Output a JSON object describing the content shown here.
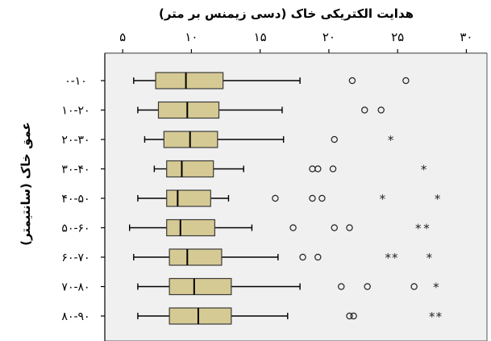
{
  "chart_data": {
    "type": "boxplot",
    "orientation": "horizontal",
    "title": "هدایت الکتریکی خاک (دسی زیمنس بر متر)",
    "xlabel": "هدایت الکتریکی خاک (دسی زیمنس بر متر)",
    "ylabel": "عمق خاک (سانتیمتر)",
    "x_axis_position": "top",
    "xlim": [
      3.7,
      31.5
    ],
    "xticks": [
      5,
      10,
      15,
      20,
      25,
      30
    ],
    "xtick_labels": [
      "۵",
      "۱۰",
      "۱۵",
      "۲۰",
      "۲۵",
      "۳۰"
    ],
    "grid": false,
    "categories": [
      "۰-۱۰",
      "۱۰-۲۰",
      "۲۰-۳۰",
      "۳۰-۴۰",
      "۴۰-۵۰",
      "۵۰-۶۰",
      "۶۰-۷۰",
      "۷۰-۸۰",
      "۸۰-۹۰"
    ],
    "boxes": [
      {
        "whisker_low": 5.8,
        "q1": 7.4,
        "median": 9.6,
        "q3": 12.3,
        "whisker_high": 17.9,
        "outliers": [
          21.7,
          25.6
        ],
        "extremes": []
      },
      {
        "whisker_low": 6.1,
        "q1": 7.6,
        "median": 9.7,
        "q3": 12.0,
        "whisker_high": 16.6,
        "outliers": [
          22.6,
          23.8
        ],
        "extremes": []
      },
      {
        "whisker_low": 6.6,
        "q1": 8.0,
        "median": 9.9,
        "q3": 11.9,
        "whisker_high": 16.7,
        "outliers": [
          20.4
        ],
        "extremes": [
          24.5
        ]
      },
      {
        "whisker_low": 7.3,
        "q1": 8.2,
        "median": 9.3,
        "q3": 11.6,
        "whisker_high": 13.8,
        "outliers": [
          18.8,
          19.2,
          20.3
        ],
        "extremes": [
          26.9
        ]
      },
      {
        "whisker_low": 6.1,
        "q1": 8.2,
        "median": 9.0,
        "q3": 11.4,
        "whisker_high": 12.7,
        "outliers": [
          16.1,
          18.8,
          19.5
        ],
        "extremes": [
          23.9,
          27.9
        ]
      },
      {
        "whisker_low": 5.5,
        "q1": 8.2,
        "median": 9.2,
        "q3": 11.7,
        "whisker_high": 14.4,
        "outliers": [
          17.4,
          20.4,
          21.5
        ],
        "extremes": [
          26.5,
          27.1
        ]
      },
      {
        "whisker_low": 5.8,
        "q1": 8.4,
        "median": 9.7,
        "q3": 12.2,
        "whisker_high": 16.3,
        "outliers": [
          18.1,
          19.2
        ],
        "extremes": [
          24.3,
          24.8,
          27.3
        ]
      },
      {
        "whisker_low": 6.1,
        "q1": 8.4,
        "median": 10.2,
        "q3": 12.9,
        "whisker_high": 17.9,
        "outliers": [
          20.9,
          22.8,
          26.2
        ],
        "extremes": [
          27.8
        ]
      },
      {
        "whisker_low": 6.1,
        "q1": 8.4,
        "median": 10.5,
        "q3": 12.9,
        "whisker_high": 17.0,
        "outliers": [
          21.5,
          21.8
        ],
        "extremes": [
          27.5,
          28.0
        ]
      }
    ],
    "colors": {
      "plot_background": "#f0f0f0",
      "box_fill": "#d6ca94",
      "box_stroke": "#3a3a3a",
      "line": "#000000"
    }
  }
}
